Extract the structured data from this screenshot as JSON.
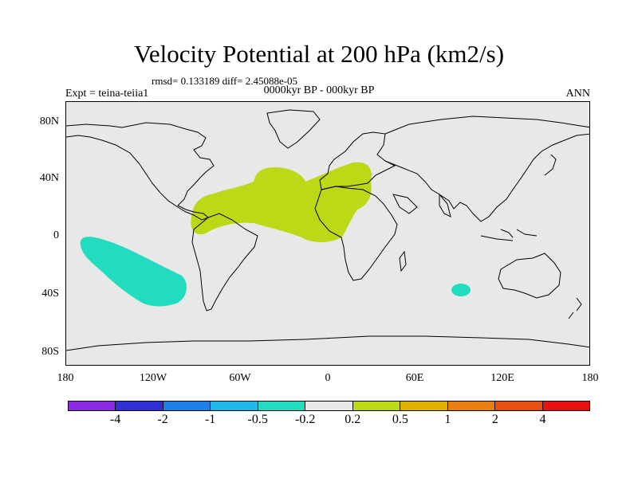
{
  "title": "Velocity Potential at 200 hPa (km2/s)",
  "stats": "rmsd= 0.133189 diff= 2.45088e-05",
  "experiment": "Expt = teina-teiia1",
  "period": "0000kyr BP - 000kyr BP",
  "season": "ANN",
  "yticks": [
    "80N",
    "40N",
    "0",
    "40S",
    "80S"
  ],
  "xticks": [
    "180",
    "120W",
    "60W",
    "0",
    "60E",
    "120E",
    "180"
  ],
  "colorbar": {
    "colors": [
      "#8a2be2",
      "#3030d8",
      "#1e80e8",
      "#20b8e8",
      "#22dcc0",
      "#e8e8e8",
      "#bcd816",
      "#e0b000",
      "#e88010",
      "#e85010",
      "#e81010"
    ],
    "labels": [
      "-4",
      "-2",
      "-1",
      "-0.5",
      "-0.2",
      "0.2",
      "0.5",
      "1",
      "2",
      "4"
    ]
  },
  "fields": {
    "positive_color": "#bcd816",
    "negative_color": "#22dcc0"
  }
}
